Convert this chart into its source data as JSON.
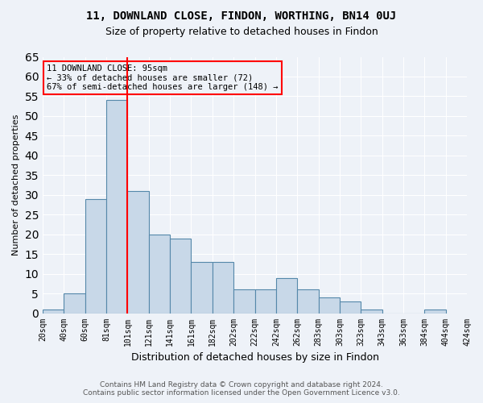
{
  "title1": "11, DOWNLAND CLOSE, FINDON, WORTHING, BN14 0UJ",
  "title2": "Size of property relative to detached houses in Findon",
  "xlabel": "Distribution of detached houses by size in Findon",
  "ylabel": "Number of detached properties",
  "footer1": "Contains HM Land Registry data © Crown copyright and database right 2024.",
  "footer2": "Contains public sector information licensed under the Open Government Licence v3.0.",
  "annotation_line1": "11 DOWNLAND CLOSE: 95sqm",
  "annotation_line2": "← 33% of detached houses are smaller (72)",
  "annotation_line3": "67% of semi-detached houses are larger (148) →",
  "bar_values": [
    1,
    5,
    29,
    54,
    31,
    20,
    19,
    13,
    13,
    6,
    6,
    9,
    6,
    4,
    3,
    1,
    0,
    0,
    1
  ],
  "bin_labels": [
    "20sqm",
    "40sqm",
    "60sqm",
    "81sqm",
    "101sqm",
    "121sqm",
    "141sqm",
    "161sqm",
    "182sqm",
    "202sqm",
    "222sqm",
    "242sqm",
    "262sqm",
    "283sqm",
    "303sqm",
    "323sqm",
    "343sqm",
    "363sqm",
    "384sqm",
    "404sqm",
    "424sqm"
  ],
  "bar_color": "#c8d8e8",
  "bar_edge_color": "#5588aa",
  "vline_color": "red",
  "ylim": [
    0,
    65
  ],
  "yticks": [
    0,
    5,
    10,
    15,
    20,
    25,
    30,
    35,
    40,
    45,
    50,
    55,
    60,
    65
  ],
  "annotation_box_color": "red",
  "bg_color": "#eef2f8",
  "grid_color": "#ffffff"
}
